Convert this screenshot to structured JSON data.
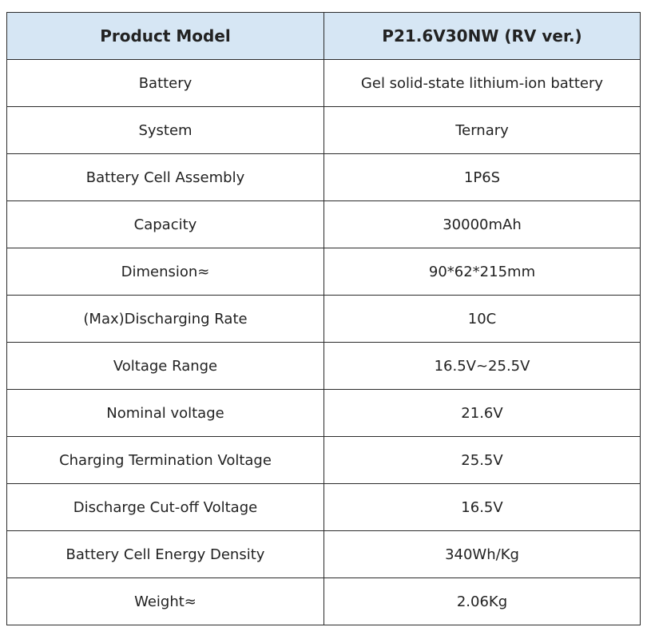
{
  "header": {
    "col1": "Product Model",
    "col2": "P21.6V30NW (RV ver.)"
  },
  "rows": [
    {
      "label": "Battery",
      "value": "Gel solid-state lithium-ion battery"
    },
    {
      "label": "System",
      "value": "Ternary"
    },
    {
      "label": "Battery Cell Assembly",
      "value": "1P6S"
    },
    {
      "label": "Capacity",
      "value": "30000mAh"
    },
    {
      "label": "Dimension≈",
      "value": "90*62*215mm"
    },
    {
      "label": "(Max)Discharging Rate",
      "value": "10C"
    },
    {
      "label": "Voltage Range",
      "value": "16.5V~25.5V"
    },
    {
      "label": "Nominal voltage",
      "value": "21.6V"
    },
    {
      "label": "Charging Termination Voltage",
      "value": "25.5V"
    },
    {
      "label": "Discharge Cut-off Voltage",
      "value": "16.5V"
    },
    {
      "label": "Battery Cell Energy Density",
      "value": "340Wh/Kg"
    },
    {
      "label": "Weight≈",
      "value": "2.06Kg"
    }
  ],
  "colors": {
    "header_bg": "#d6e6f4",
    "border": "#2b2b2b",
    "text": "#222222"
  }
}
